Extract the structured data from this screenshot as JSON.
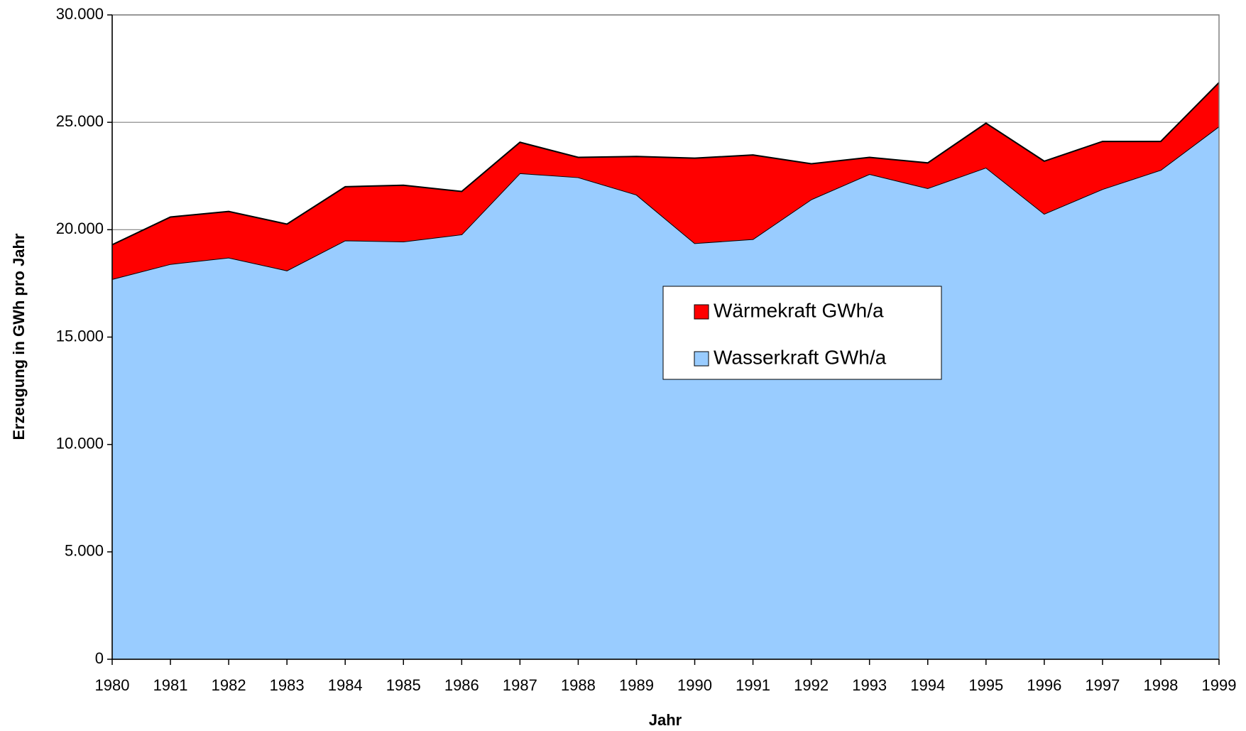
{
  "chart_data": {
    "type": "stacked_area",
    "x": [
      1980,
      1981,
      1982,
      1983,
      1984,
      1985,
      1986,
      1987,
      1988,
      1989,
      1990,
      1991,
      1992,
      1993,
      1994,
      1995,
      1996,
      1997,
      1998,
      1999
    ],
    "xlim": [
      1980,
      1999
    ],
    "series": [
      {
        "name": "Wasserkraft GWh/a",
        "color": "#99ccff",
        "values": [
          17700,
          18400,
          18700,
          18100,
          19500,
          19450,
          19780,
          22630,
          22440,
          21630,
          19370,
          19560,
          21410,
          22590,
          21930,
          22890,
          20740,
          21890,
          22780,
          24810
        ]
      },
      {
        "name": "Wärmekraft GWh/a",
        "color": "#ff0000",
        "values": [
          1600,
          2190,
          2150,
          2160,
          2500,
          2620,
          2000,
          1440,
          930,
          1780,
          3960,
          3920,
          1660,
          780,
          1180,
          2070,
          2450,
          2220,
          1330,
          2040
        ]
      }
    ],
    "ylim": [
      0,
      30000
    ],
    "yticks": [
      0,
      {
        "value": 5000,
        "label": "5.000"
      },
      {
        "value": 10000,
        "label": "10.000"
      },
      {
        "value": 15000,
        "label": "15.000"
      },
      {
        "value": 20000,
        "label": "20.000"
      },
      {
        "value": 25000,
        "label": "25.000"
      },
      {
        "value": 30000,
        "label": "30.000"
      }
    ],
    "xlabel": "Jahr",
    "ylabel": "Erzeugung in GWh pro Jahr",
    "grid": true
  }
}
